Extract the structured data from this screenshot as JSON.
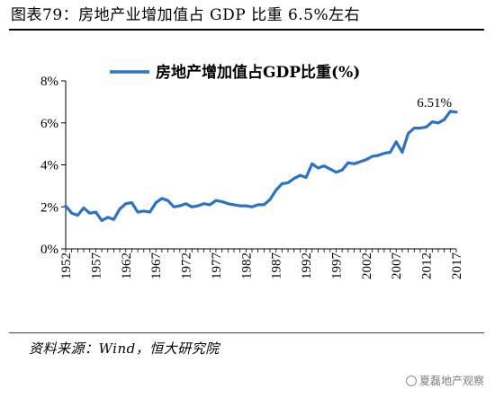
{
  "header": {
    "title": "图表79：房地产业增加值占 GDP 比重 6.5%左右"
  },
  "footer": {
    "source": "资料来源：Wind，恒大研究院",
    "watermark": "夏磊地产观察"
  },
  "chart_data": {
    "type": "line",
    "title": "",
    "xlabel": "",
    "ylabel": "",
    "legend": "top-left",
    "grid": false,
    "ylim": [
      0,
      8
    ],
    "yticks": [
      "0%",
      "2%",
      "4%",
      "6%",
      "8%"
    ],
    "xticks": [
      "1952",
      "1957",
      "1962",
      "1967",
      "1972",
      "1977",
      "1982",
      "1987",
      "1992",
      "1997",
      "2002",
      "2007",
      "2012",
      "2017"
    ],
    "annotation": {
      "text": "6.51%",
      "x": 2017,
      "y": 6.51
    },
    "series": [
      {
        "name": "房地产增加值占GDP比重(%)",
        "color": "#2a73c4",
        "x": [
          1952,
          1953,
          1954,
          1955,
          1956,
          1957,
          1958,
          1959,
          1960,
          1961,
          1962,
          1963,
          1964,
          1965,
          1966,
          1967,
          1968,
          1969,
          1970,
          1971,
          1972,
          1973,
          1974,
          1975,
          1976,
          1977,
          1978,
          1979,
          1980,
          1981,
          1982,
          1983,
          1984,
          1985,
          1986,
          1987,
          1988,
          1989,
          1990,
          1991,
          1992,
          1993,
          1994,
          1995,
          1996,
          1997,
          1998,
          1999,
          2000,
          2001,
          2002,
          2003,
          2004,
          2005,
          2006,
          2007,
          2008,
          2009,
          2010,
          2011,
          2012,
          2013,
          2014,
          2015,
          2016,
          2017
        ],
        "values": [
          2.05,
          1.7,
          1.6,
          1.95,
          1.7,
          1.75,
          1.35,
          1.5,
          1.4,
          1.9,
          2.15,
          2.2,
          1.75,
          1.8,
          1.75,
          2.2,
          2.4,
          2.3,
          2.0,
          2.05,
          2.15,
          2.0,
          2.05,
          2.15,
          2.1,
          2.3,
          2.25,
          2.15,
          2.1,
          2.05,
          2.05,
          2.0,
          2.1,
          2.1,
          2.35,
          2.8,
          3.1,
          3.15,
          3.35,
          3.5,
          3.4,
          4.05,
          3.85,
          3.95,
          3.8,
          3.65,
          3.75,
          4.1,
          4.05,
          4.15,
          4.25,
          4.4,
          4.45,
          4.55,
          4.6,
          5.1,
          4.6,
          5.5,
          5.75,
          5.75,
          5.8,
          6.05,
          6.0,
          6.15,
          6.55,
          6.51
        ]
      }
    ]
  }
}
